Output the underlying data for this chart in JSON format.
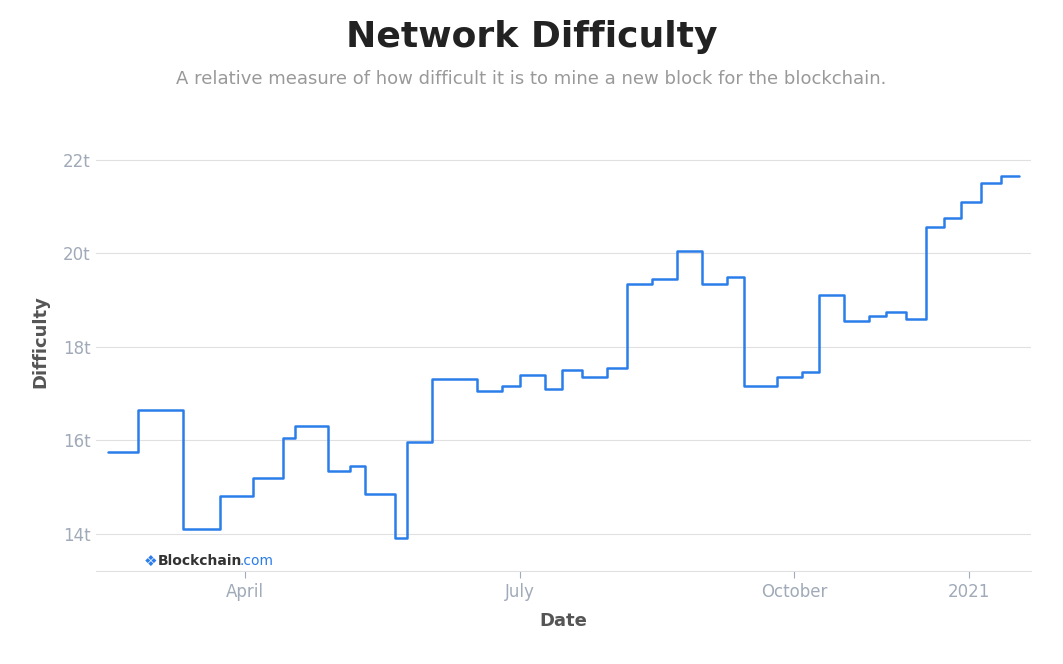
{
  "title": "Network Difficulty",
  "subtitle": "A relative measure of how difficult it is to mine a new block for the blockchain.",
  "xlabel": "Date",
  "ylabel": "Difficulty",
  "title_fontsize": 26,
  "subtitle_fontsize": 13,
  "axis_label_fontsize": 13,
  "tick_fontsize": 12,
  "background_color": "#ffffff",
  "line_color": "#2b7de9",
  "grid_color": "#e0e0e0",
  "tick_label_color": "#a0aab8",
  "axis_label_color": "#555555",
  "yticks": [
    14,
    16,
    18,
    20,
    22
  ],
  "ytick_labels": [
    "14t",
    "16t",
    "18t",
    "20t",
    "22t"
  ],
  "xtick_labels": [
    "April",
    "July",
    "October",
    "2021"
  ],
  "xtick_positions": [
    55,
    165,
    275,
    345
  ],
  "xlim": [
    -5,
    370
  ],
  "ylim": [
    13.2,
    23.0
  ],
  "line_width": 1.8,
  "segments": [
    [
      0,
      15.75
    ],
    [
      12,
      15.75
    ],
    [
      12,
      16.65
    ],
    [
      30,
      16.65
    ],
    [
      30,
      14.1
    ],
    [
      45,
      14.1
    ],
    [
      45,
      14.8
    ],
    [
      58,
      14.8
    ],
    [
      58,
      15.2
    ],
    [
      70,
      15.2
    ],
    [
      70,
      16.05
    ],
    [
      75,
      16.05
    ],
    [
      75,
      16.3
    ],
    [
      88,
      16.3
    ],
    [
      88,
      15.35
    ],
    [
      97,
      15.35
    ],
    [
      97,
      15.45
    ],
    [
      103,
      15.45
    ],
    [
      103,
      14.85
    ],
    [
      115,
      14.85
    ],
    [
      115,
      13.9
    ],
    [
      120,
      13.9
    ],
    [
      120,
      15.95
    ],
    [
      130,
      15.95
    ],
    [
      130,
      17.3
    ],
    [
      148,
      17.3
    ],
    [
      148,
      17.05
    ],
    [
      158,
      17.05
    ],
    [
      158,
      17.15
    ],
    [
      165,
      17.15
    ],
    [
      165,
      17.4
    ],
    [
      175,
      17.4
    ],
    [
      175,
      17.1
    ],
    [
      182,
      17.1
    ],
    [
      182,
      17.5
    ],
    [
      190,
      17.5
    ],
    [
      190,
      17.35
    ],
    [
      200,
      17.35
    ],
    [
      200,
      17.55
    ],
    [
      208,
      17.55
    ],
    [
      208,
      19.35
    ],
    [
      218,
      19.35
    ],
    [
      218,
      19.45
    ],
    [
      228,
      19.45
    ],
    [
      228,
      20.05
    ],
    [
      238,
      20.05
    ],
    [
      238,
      19.35
    ],
    [
      248,
      19.35
    ],
    [
      248,
      19.5
    ],
    [
      255,
      19.5
    ],
    [
      255,
      17.15
    ],
    [
      268,
      17.15
    ],
    [
      268,
      17.35
    ],
    [
      278,
      17.35
    ],
    [
      278,
      17.45
    ],
    [
      285,
      17.45
    ],
    [
      285,
      19.1
    ],
    [
      295,
      19.1
    ],
    [
      295,
      18.55
    ],
    [
      305,
      18.55
    ],
    [
      305,
      18.65
    ],
    [
      312,
      18.65
    ],
    [
      312,
      18.75
    ],
    [
      320,
      18.75
    ],
    [
      320,
      18.6
    ],
    [
      328,
      18.6
    ],
    [
      328,
      20.55
    ],
    [
      335,
      20.55
    ],
    [
      335,
      20.75
    ],
    [
      342,
      20.75
    ],
    [
      342,
      21.1
    ],
    [
      350,
      21.1
    ],
    [
      350,
      21.5
    ],
    [
      358,
      21.5
    ],
    [
      358,
      21.65
    ],
    [
      365,
      21.65
    ]
  ]
}
